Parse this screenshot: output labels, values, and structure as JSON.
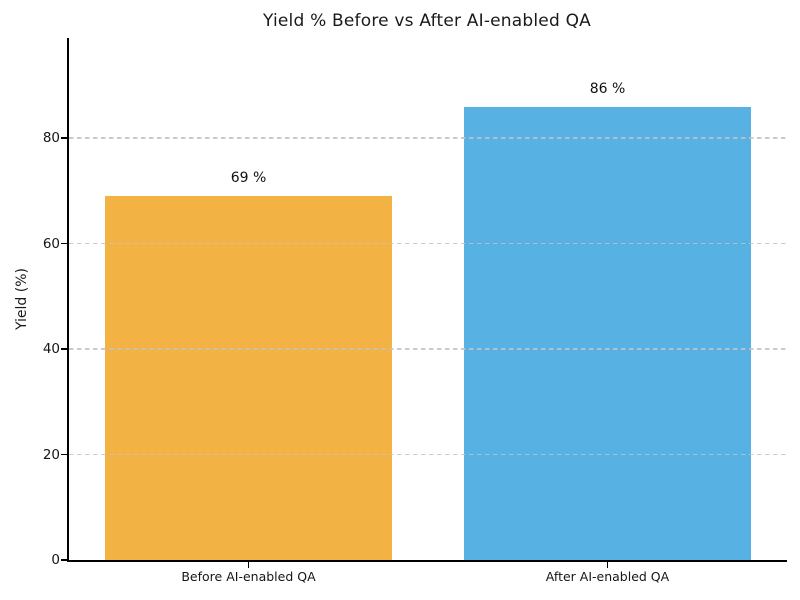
{
  "chart_data": {
    "type": "bar",
    "title": "Yield % Before vs After AI-enabled QA",
    "categories": [
      "Before AI-enabled QA",
      "After AI-enabled QA"
    ],
    "values": [
      69,
      86
    ],
    "value_labels": [
      "69 %",
      "86 %"
    ],
    "bar_colors": [
      "#F2B344",
      "#57B2E3"
    ],
    "xlabel": "",
    "ylabel": "Yield (%)",
    "ylim": [
      0,
      99
    ],
    "yticks": [
      0,
      20,
      40,
      60,
      80
    ],
    "xticks_at_bar_centers": true,
    "grid": "horizontal-dashed-over-bars",
    "grid_color": "#c2c2c6",
    "axis_color": "#000000",
    "title_color": "#1a1a1a",
    "text_color": "#161616",
    "background_color": "#ffffff",
    "legend": "none"
  }
}
